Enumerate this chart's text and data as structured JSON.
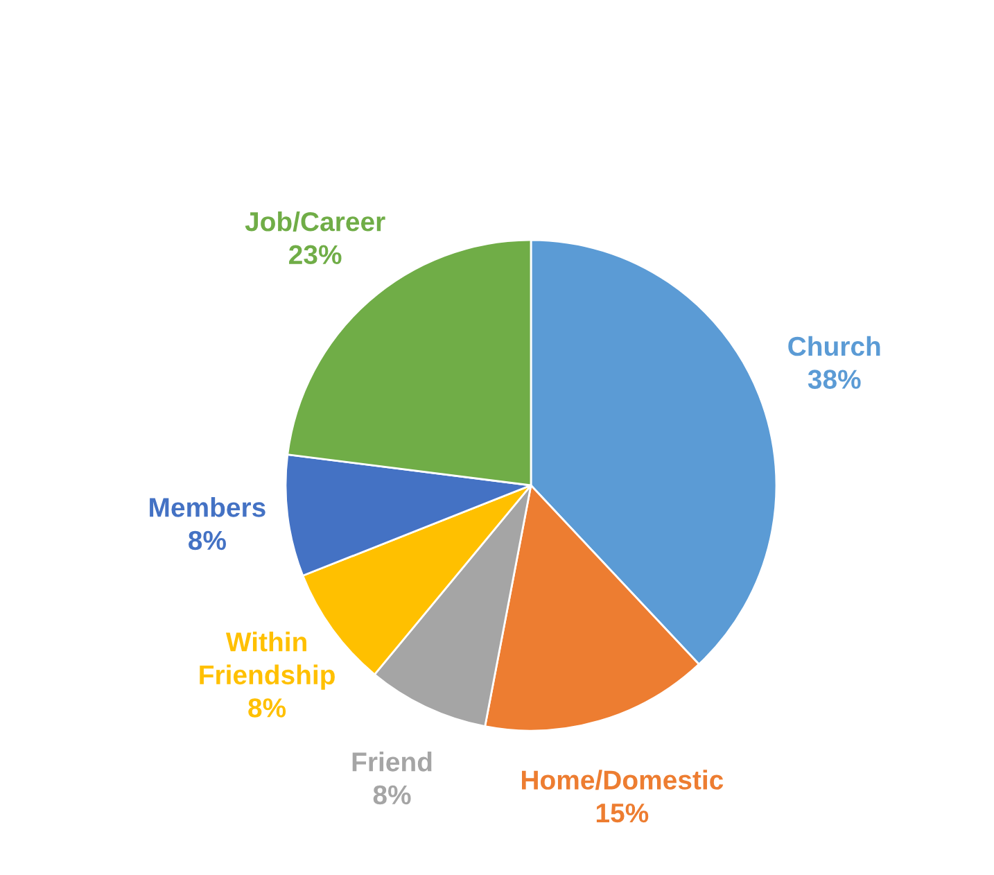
{
  "chart_data": {
    "type": "pie",
    "categories": [
      "Church",
      "Home/Domestic",
      "Friend",
      "Within Friendship",
      "Members",
      "Job/Career"
    ],
    "values": [
      38,
      15,
      8,
      8,
      8,
      23
    ],
    "value_labels": [
      "38%",
      "15%",
      "8%",
      "8%",
      "8%",
      "23%"
    ],
    "colors": [
      "#5b9bd5",
      "#ed7d31",
      "#a5a5a5",
      "#ffc000",
      "#4472c4",
      "#70ad47"
    ]
  }
}
